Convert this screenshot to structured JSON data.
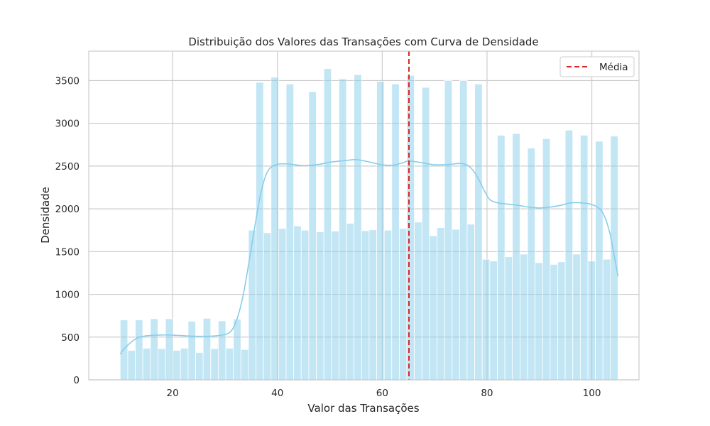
{
  "chart_data": {
    "type": "bar",
    "title": "Distribuição dos Valores das Transações com Curva de Densidade",
    "xlabel": "Valor das Transações",
    "ylabel": "Densidade",
    "xlim": [
      4,
      109
    ],
    "ylim": [
      0,
      3500
    ],
    "x_ticks": [
      20,
      40,
      60,
      80,
      100
    ],
    "y_ticks": [
      0,
      500,
      1000,
      1500,
      2000,
      2500,
      3000,
      3500
    ],
    "grid": true,
    "legend_position": "top-right",
    "bar_color": "#87CEEB",
    "bin_range": [
      10,
      105
    ],
    "bin_values": [
      700,
      345,
      700,
      370,
      715,
      365,
      715,
      345,
      370,
      685,
      320,
      720,
      365,
      690,
      370,
      710,
      355,
      1750,
      3480,
      1720,
      3540,
      1770,
      3460,
      1800,
      1750,
      3370,
      1730,
      3640,
      1740,
      3520,
      1830,
      3570,
      1745,
      1755,
      3490,
      1750,
      3460,
      1770,
      3560,
      1845,
      3420,
      1685,
      1780,
      3500,
      1760,
      3500,
      1820,
      3460,
      1410,
      1390,
      2860,
      1440,
      2880,
      1470,
      2710,
      1370,
      2820,
      1350,
      1380,
      2920,
      1470,
      2860,
      1390,
      2790,
      1410,
      2850
    ],
    "kde": {
      "color": "#87CEEB",
      "x": [
        10,
        11,
        13,
        15,
        18,
        21,
        24,
        27,
        29,
        30.5,
        31.5,
        32.5,
        33.5,
        34.5,
        35.5,
        36.5,
        37.5,
        38.5,
        40,
        42,
        45,
        48,
        50,
        53,
        55,
        57,
        60,
        62,
        64,
        65,
        67,
        70,
        73,
        75,
        76.5,
        78,
        79.5,
        80.5,
        82,
        84,
        86,
        88,
        90,
        92,
        94,
        96,
        98,
        100,
        101.5,
        102.5,
        103.5,
        104.3,
        105
      ],
      "y": [
        300,
        380,
        480,
        515,
        525,
        520,
        510,
        510,
        520,
        540,
        600,
        750,
        1000,
        1350,
        1720,
        2080,
        2340,
        2470,
        2520,
        2525,
        2505,
        2520,
        2545,
        2565,
        2575,
        2555,
        2515,
        2510,
        2540,
        2560,
        2545,
        2515,
        2520,
        2530,
        2500,
        2390,
        2210,
        2110,
        2070,
        2055,
        2040,
        2020,
        2010,
        2020,
        2040,
        2070,
        2070,
        2050,
        2000,
        1900,
        1700,
        1440,
        1210
      ]
    },
    "mean_line": {
      "x": 65.1,
      "label": "Média",
      "color": "#d62728"
    }
  }
}
